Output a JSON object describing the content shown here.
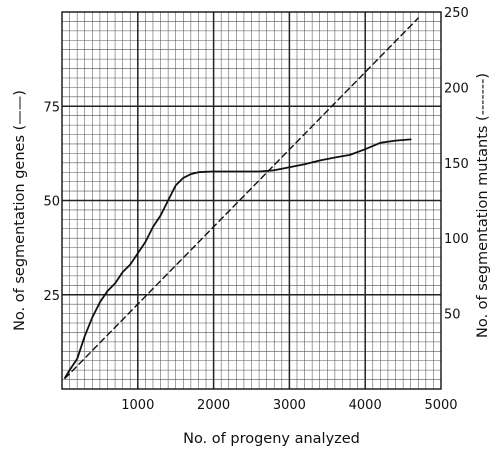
{
  "chart_data": {
    "type": "line",
    "title": "",
    "xlabel": "No. of progeny analyzed",
    "ylabel_left": "No. of segmentation genes (——)",
    "ylabel_right": "No. of segmentation mutants (-------)",
    "xlim": [
      0,
      5000
    ],
    "ylim_left": [
      0,
      100
    ],
    "ylim_right": [
      0,
      250
    ],
    "x_ticks": [
      1000,
      2000,
      3000,
      4000,
      5000
    ],
    "y_left_ticks": [
      25,
      50,
      75
    ],
    "y_right_ticks": [
      50,
      100,
      150,
      200,
      250
    ],
    "grid": true,
    "series": [
      {
        "name": "No. of segmentation genes",
        "axis": "left",
        "style": "solid",
        "x": [
          40,
          100,
          200,
          300,
          400,
          500,
          600,
          700,
          800,
          900,
          1000,
          1100,
          1200,
          1300,
          1400,
          1500,
          1600,
          1700,
          1800,
          1900,
          2000,
          2200,
          2400,
          2600,
          2800,
          3000,
          3200,
          3400,
          3600,
          3800,
          4000,
          4200,
          4400,
          4600
        ],
        "y": [
          3,
          5,
          8,
          14,
          19,
          23,
          26,
          28,
          31,
          33,
          36,
          39,
          43,
          46,
          50,
          54,
          56,
          57,
          57.5,
          57.6,
          57.7,
          57.7,
          57.7,
          57.7,
          58,
          58.8,
          59.6,
          60.6,
          61.4,
          62.1,
          63.6,
          65.3,
          65.9,
          66.2
        ]
      },
      {
        "name": "No. of segmentation mutants",
        "axis": "right",
        "style": "dashed",
        "x": [
          40,
          4700
        ],
        "y": [
          7,
          246
        ]
      }
    ]
  }
}
